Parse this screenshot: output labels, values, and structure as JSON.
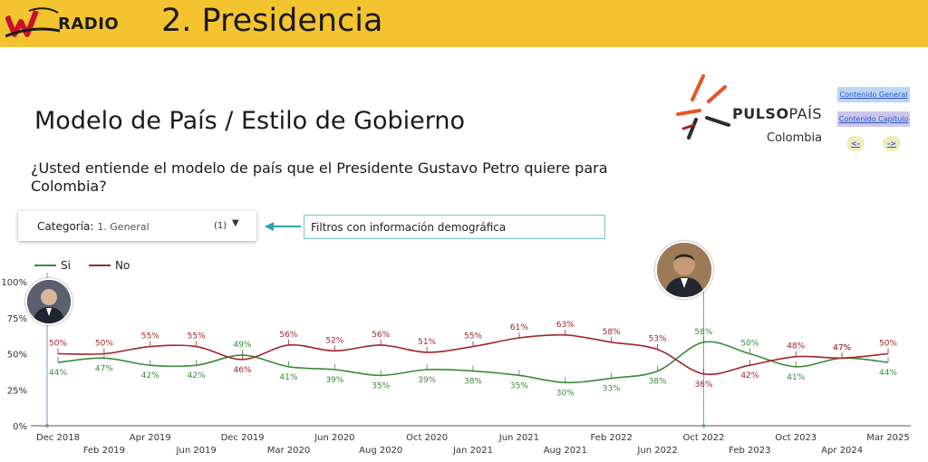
{
  "header": {
    "brand": "RADIO",
    "section_title": "2. Presidencia"
  },
  "slide": {
    "title": "Modelo de País / Estilo de Gobierno",
    "question": "¿Usted entiende el modelo de país que el Presidente Gustavo Petro quiere para Colombia?"
  },
  "pulso": {
    "name_bold": "PULSO",
    "name_regular": "PAÍS",
    "country": "Colombia"
  },
  "nav": {
    "general": "Contenido General",
    "capitulo": "Contenido Capítulo",
    "prev": "<-",
    "next": "->"
  },
  "filter": {
    "label": "Categoría:",
    "value": "1. General",
    "count": "(1)",
    "info": "Filtros con información demográfica"
  },
  "colors": {
    "si": "#3a8a3a",
    "no": "#a3242b",
    "header_bg": "#f4c430",
    "marker_line": "#6aa0b8"
  },
  "chart_data": {
    "type": "line",
    "x": [
      "Dec 2018",
      "Feb 2019",
      "Apr 2019",
      "Jun 2019",
      "Dec 2019",
      "Mar 2020",
      "Jun 2020",
      "Aug 2020",
      "Oct 2020",
      "Jan 2021",
      "Jun 2021",
      "Aug 2021",
      "Feb 2022",
      "Jun 2022",
      "Oct 2022",
      "Feb 2023",
      "Oct 2023",
      "Apr 2024",
      "Mar 2025"
    ],
    "series": [
      {
        "name": "Si",
        "values": [
          44,
          47,
          42,
          42,
          49,
          41,
          39,
          35,
          39,
          38,
          35,
          30,
          33,
          38,
          58,
          50,
          41,
          47,
          44
        ]
      },
      {
        "name": "No",
        "values": [
          50,
          50,
          55,
          55,
          46,
          56,
          52,
          56,
          51,
          55,
          61,
          63,
          58,
          53,
          36,
          42,
          48,
          47,
          50
        ]
      }
    ],
    "ytick_labels": [
      "0%",
      "25%",
      "50%",
      "75%",
      "100%"
    ],
    "ylim": [
      0,
      100
    ],
    "legend_position": "top-left",
    "grid": false,
    "markers": [
      "Dec 2018",
      "Oct 2022"
    ]
  }
}
